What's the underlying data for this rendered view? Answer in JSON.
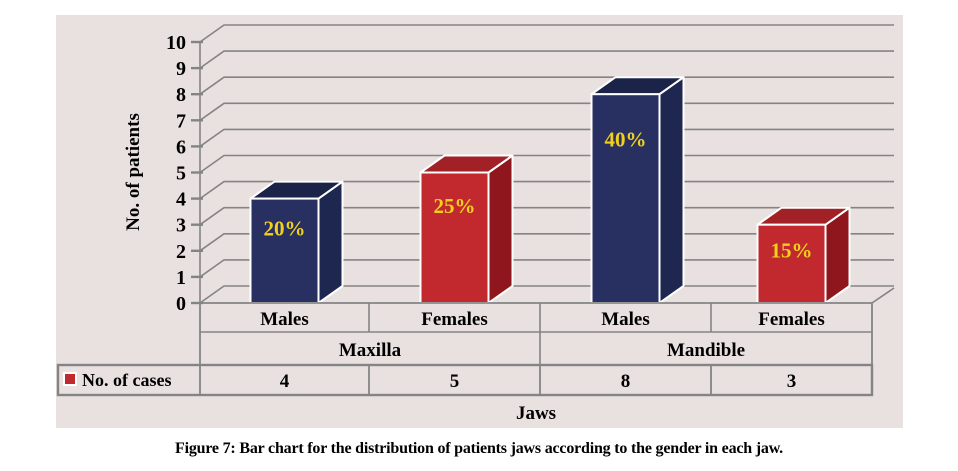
{
  "figure": {
    "caption": "Figure 7: Bar chart for the distribution of patients jaws according to the gender in each jaw."
  },
  "chart_data": {
    "type": "bar",
    "style": "3d-column",
    "title": "",
    "xlabel": "Jaws",
    "ylabel": "No. of patients",
    "ylim": [
      0,
      10
    ],
    "yticks": [
      0,
      1,
      2,
      3,
      4,
      5,
      6,
      7,
      8,
      9,
      10
    ],
    "grid": true,
    "categories": [
      "Males",
      "Females",
      "Males",
      "Females"
    ],
    "groups": [
      {
        "label": "Maxilla",
        "span": [
          0,
          1
        ]
      },
      {
        "label": "Mandible",
        "span": [
          2,
          3
        ]
      }
    ],
    "series": [
      {
        "name": "No. of cases",
        "values": [
          4,
          5,
          8,
          3
        ]
      }
    ],
    "bar_labels": [
      "20%",
      "25%",
      "40%",
      "15%"
    ],
    "bar_color_keys": [
      "navy",
      "red",
      "navy",
      "red"
    ],
    "bar_palette": {
      "navy": {
        "front": "#283061",
        "top": "#1b2349",
        "side": "#1e2750"
      },
      "red": {
        "front": "#c1292f",
        "top": "#a22127",
        "side": "#8e161c"
      }
    },
    "legend": {
      "position": "table-row-left",
      "entries": [
        {
          "label": "No. of cases",
          "marker_color": "#c1292f"
        }
      ]
    },
    "data_table": {
      "row_label": "No. of cases",
      "values": [
        "4",
        "5",
        "8",
        "3"
      ]
    },
    "colors": {
      "plot_bg": "#e8e1e0",
      "grid": "#848484",
      "bar_edge": "#ffffff",
      "percent_label": "#f2d11c",
      "text": "#000000"
    }
  }
}
